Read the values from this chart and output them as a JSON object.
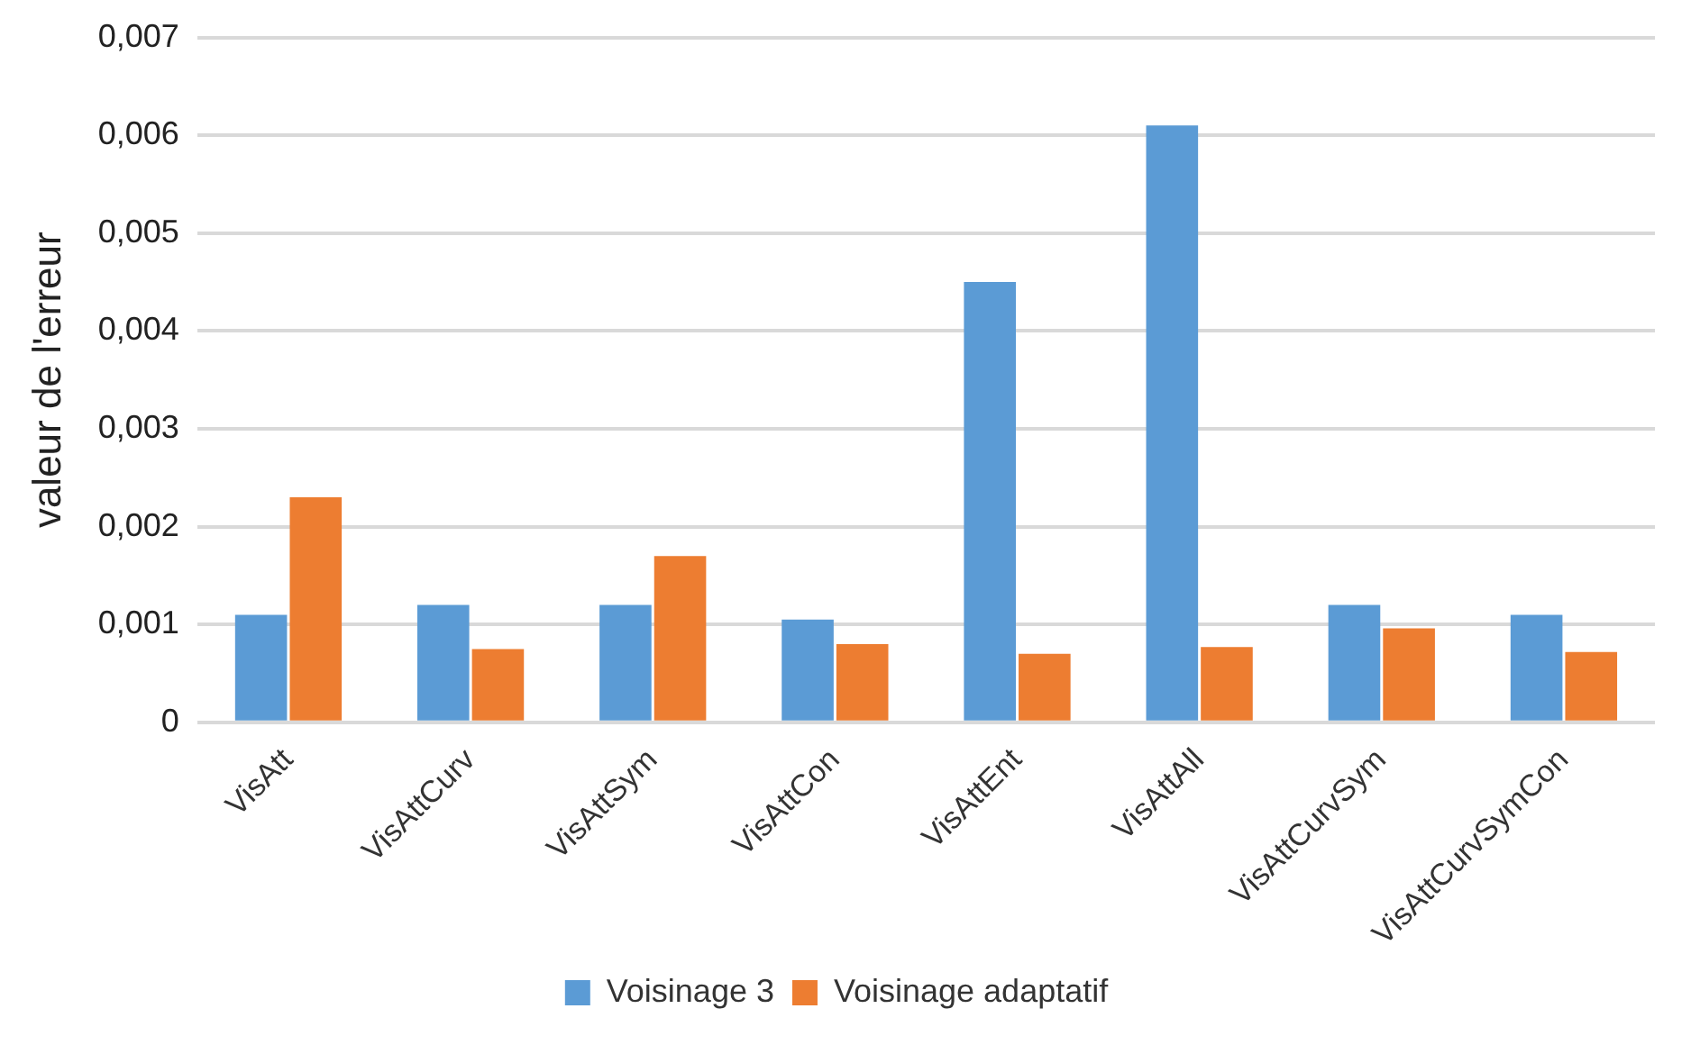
{
  "chart_data": {
    "type": "bar",
    "ylabel": "valeur de l'erreur",
    "categories": [
      "VisAtt",
      "VisAttCurv",
      "VisAttSym",
      "VisAttCon",
      "VisAttEnt",
      "VisAttAll",
      "VisAttCurvSym",
      "VisAttCurvSymCon"
    ],
    "series": [
      {
        "name": "Voisinage 3",
        "color": "#5b9bd5",
        "values": [
          0.0011,
          0.0012,
          0.0012,
          0.00105,
          0.0045,
          0.0061,
          0.0012,
          0.0011
        ]
      },
      {
        "name": "Voisinage adaptatif",
        "color": "#ed7d31",
        "values": [
          0.0023,
          0.00075,
          0.0017,
          0.0008,
          0.0007,
          0.00077,
          0.00096,
          0.00072
        ]
      }
    ],
    "ylim": [
      0,
      0.007
    ],
    "yticks": [
      {
        "value": 0,
        "label": "0"
      },
      {
        "value": 0.001,
        "label": "0,001"
      },
      {
        "value": 0.002,
        "label": "0,002"
      },
      {
        "value": 0.003,
        "label": "0,003"
      },
      {
        "value": 0.004,
        "label": "0,004"
      },
      {
        "value": 0.005,
        "label": "0,005"
      },
      {
        "value": 0.006,
        "label": "0,006"
      },
      {
        "value": 0.007,
        "label": "0,007"
      }
    ],
    "grid": "y",
    "legend": "bottom"
  }
}
